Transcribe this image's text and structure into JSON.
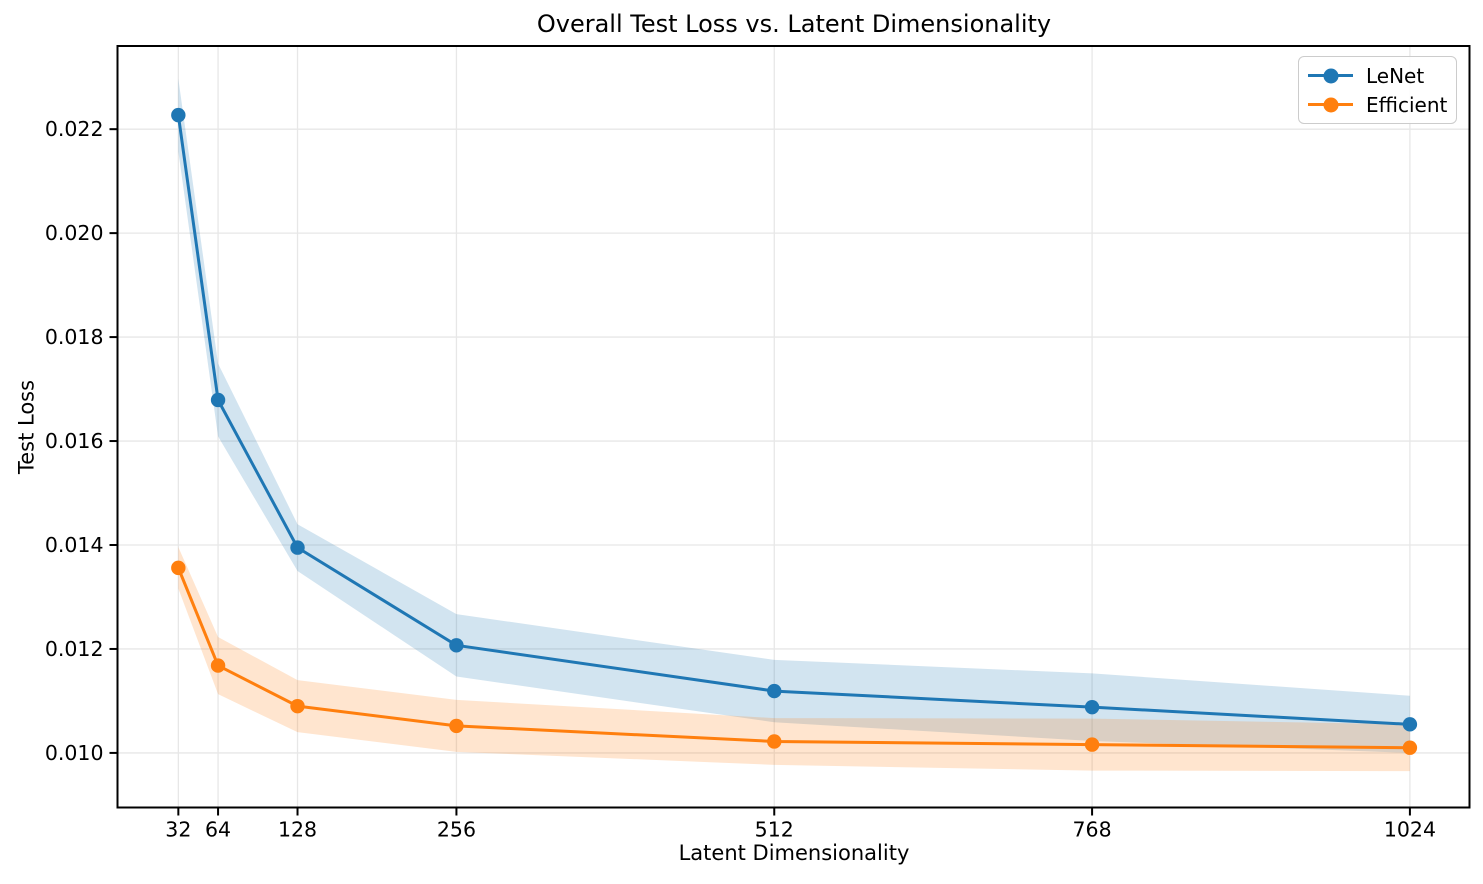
{
  "chart_data": {
    "type": "line",
    "title": "Overall Test Loss vs. Latent Dimensionality",
    "xlabel": "Latent Dimensionality",
    "ylabel": "Test Loss",
    "x": [
      32,
      64,
      128,
      256,
      512,
      768,
      1024
    ],
    "x_tick_labels": [
      "32",
      "64",
      "128",
      "256",
      "512",
      "768",
      "1024"
    ],
    "y_ticks": [
      0.01,
      0.012,
      0.014,
      0.016,
      0.018,
      0.02,
      0.022
    ],
    "xlim": [
      -17,
      1072
    ],
    "ylim": [
      0.00895,
      0.0236
    ],
    "x_scale": "linear",
    "grid": true,
    "legend_position": "upper right",
    "series": [
      {
        "name": "LeNet",
        "color": "#1f77b4",
        "values": [
          0.02227,
          0.01679,
          0.01395,
          0.01207,
          0.01119,
          0.01088,
          0.01055
        ],
        "band_halfwidth": [
          0.0007,
          0.0007,
          0.00045,
          0.0006,
          0.0006,
          0.00065,
          0.00055
        ]
      },
      {
        "name": "Efficient",
        "color": "#ff7f0e",
        "values": [
          0.01356,
          0.01168,
          0.0109,
          0.01052,
          0.01022,
          0.01016,
          0.0101
        ],
        "band_halfwidth": [
          0.0004,
          0.00055,
          0.0005,
          0.0005,
          0.00045,
          0.0005,
          0.00045
        ]
      }
    ],
    "band_opacity": 0.2,
    "grid_color": "#e7e7e7",
    "axis_color": "#000000"
  }
}
